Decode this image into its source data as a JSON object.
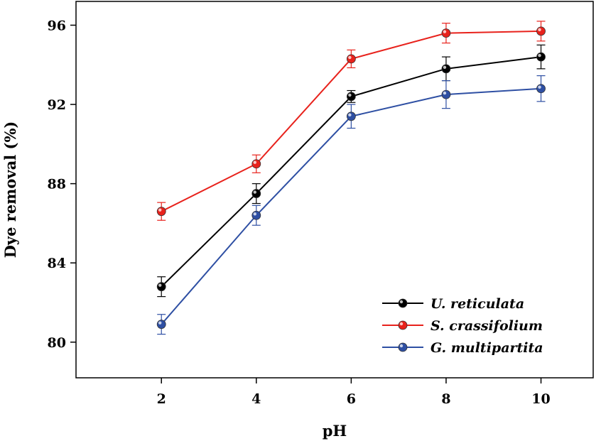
{
  "chart_data": {
    "type": "line",
    "xlabel": "pH",
    "ylabel": "Dye removal (%)",
    "x": [
      2,
      4,
      6,
      8,
      10
    ],
    "xlim": [
      0.2,
      11.1
    ],
    "ylim": [
      78.2,
      97.2
    ],
    "xticks": [
      2,
      4,
      6,
      8,
      10
    ],
    "yticks": [
      80,
      84,
      88,
      92,
      96
    ],
    "grid": false,
    "legend_position": "bottom-right",
    "series": [
      {
        "name": "U. reticulata",
        "color": "#000000",
        "values": [
          82.8,
          87.5,
          92.4,
          93.8,
          94.4
        ],
        "error": [
          0.5,
          0.5,
          0.3,
          0.6,
          0.6
        ]
      },
      {
        "name": "S. crassifolium",
        "color": "#e8221c",
        "values": [
          86.6,
          89.0,
          94.3,
          95.6,
          95.7
        ],
        "error": [
          0.45,
          0.45,
          0.45,
          0.5,
          0.5
        ]
      },
      {
        "name": "G. multipartita",
        "color": "#2e4fa3",
        "values": [
          80.9,
          86.4,
          91.4,
          92.5,
          92.8
        ],
        "error": [
          0.5,
          0.5,
          0.6,
          0.7,
          0.65
        ]
      }
    ]
  }
}
